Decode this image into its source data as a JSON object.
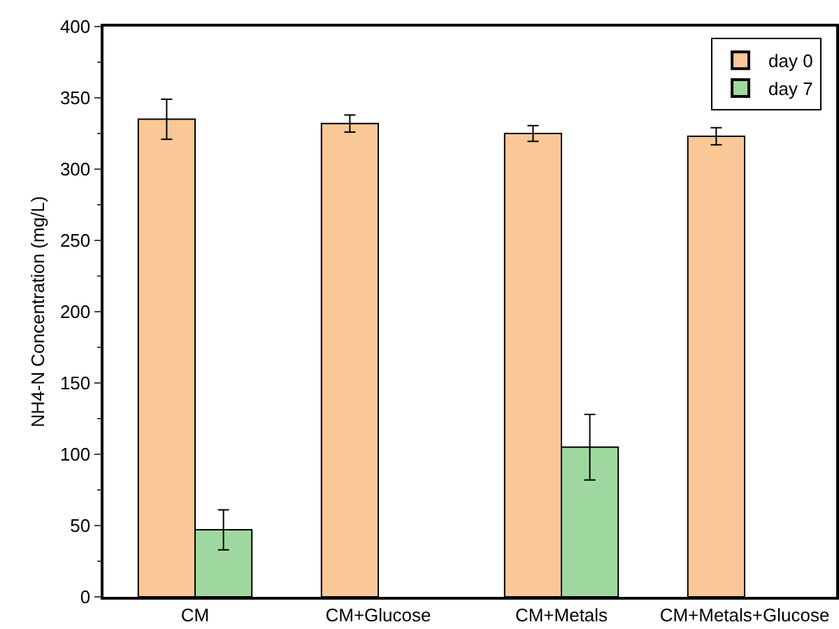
{
  "chart_data": {
    "type": "bar",
    "ylabel": "NH4-N Concentration (mg/L)",
    "categories": [
      "CM",
      "CM+Glucose",
      "CM+Metals",
      "CM+Metals+Glucose"
    ],
    "series": [
      {
        "name": "day 0",
        "color": "#f9c896",
        "values": [
          335,
          332,
          325,
          323
        ],
        "errors": [
          14,
          6,
          5.5,
          6
        ]
      },
      {
        "name": "day 7",
        "color": "#9fd89e",
        "values": [
          47,
          null,
          105,
          null
        ],
        "errors": [
          14,
          null,
          23,
          null
        ]
      }
    ],
    "ylim": [
      0,
      400
    ],
    "yticks": [
      0,
      50,
      100,
      150,
      200,
      250,
      300,
      350,
      400
    ],
    "grid": false,
    "legend": "top right"
  }
}
